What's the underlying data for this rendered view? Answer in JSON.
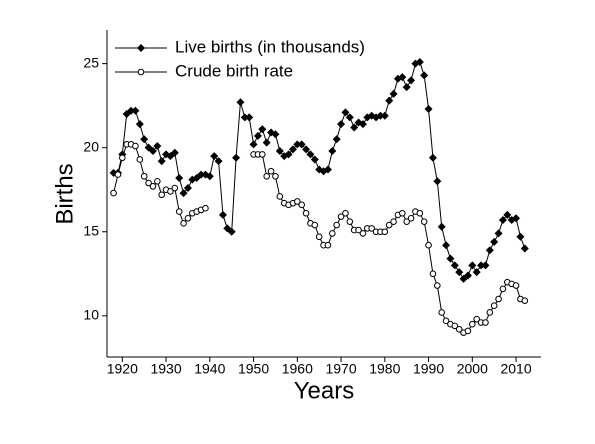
{
  "chart_data": {
    "type": "line",
    "xlabel": "Years",
    "ylabel": "Births",
    "x": [
      1918,
      1919,
      1920,
      1921,
      1922,
      1923,
      1924,
      1925,
      1926,
      1927,
      1928,
      1929,
      1930,
      1931,
      1932,
      1933,
      1934,
      1935,
      1936,
      1937,
      1938,
      1939,
      1940,
      1941,
      1942,
      1943,
      1944,
      1945,
      1946,
      1947,
      1948,
      1949,
      1950,
      1951,
      1952,
      1953,
      1954,
      1955,
      1956,
      1957,
      1958,
      1959,
      1960,
      1961,
      1962,
      1963,
      1964,
      1965,
      1966,
      1967,
      1968,
      1969,
      1970,
      1971,
      1972,
      1973,
      1974,
      1975,
      1976,
      1977,
      1978,
      1979,
      1980,
      1981,
      1982,
      1983,
      1984,
      1985,
      1986,
      1987,
      1988,
      1989,
      1990,
      1991,
      1992,
      1993,
      1994,
      1995,
      1996,
      1997,
      1998,
      1999,
      2000,
      2001,
      2002,
      2003,
      2004,
      2005,
      2006,
      2007,
      2008,
      2009,
      2010,
      2011,
      2012
    ],
    "series": [
      {
        "name": "Live births (in thousands)",
        "color": "#000000",
        "marker": "diamond",
        "values": [
          18.5,
          18.5,
          19.6,
          22.0,
          22.2,
          22.2,
          21.4,
          20.5,
          20.0,
          19.8,
          20.1,
          19.2,
          19.6,
          19.5,
          19.7,
          18.2,
          17.3,
          17.6,
          18.1,
          18.2,
          18.4,
          18.4,
          18.3,
          19.5,
          19.2,
          16.0,
          15.2,
          15.0,
          19.4,
          22.7,
          21.8,
          21.8,
          20.2,
          20.7,
          21.1,
          20.3,
          20.9,
          20.8,
          19.8,
          19.5,
          19.6,
          19.9,
          20.2,
          20.2,
          19.9,
          19.6,
          19.3,
          18.7,
          18.6,
          18.7,
          19.8,
          20.5,
          21.4,
          22.1,
          21.8,
          21.2,
          21.5,
          21.4,
          21.8,
          21.9,
          21.8,
          21.9,
          21.9,
          22.8,
          23.2,
          24.1,
          24.2,
          23.6,
          24.0,
          25.0,
          25.1,
          24.3,
          22.3,
          19.4,
          18.0,
          15.3,
          14.2,
          13.4,
          13.0,
          12.6,
          12.2,
          12.4,
          13.0,
          12.6,
          13.0,
          13.0,
          13.9,
          14.4,
          14.9,
          15.7,
          16.0,
          15.7,
          15.8,
          14.7,
          14.0
        ]
      },
      {
        "name": "Crude birth rate",
        "color": "#000000",
        "marker": "circle",
        "values": [
          17.3,
          18.4,
          19.4,
          20.2,
          20.2,
          20.1,
          19.3,
          18.3,
          17.9,
          17.7,
          18.0,
          17.2,
          17.5,
          17.4,
          17.6,
          16.2,
          15.5,
          15.8,
          16.1,
          16.2,
          16.3,
          16.4,
          null,
          null,
          null,
          null,
          null,
          null,
          null,
          null,
          null,
          null,
          19.6,
          19.6,
          19.6,
          18.3,
          18.6,
          18.3,
          17.1,
          16.7,
          16.6,
          16.7,
          16.8,
          16.6,
          16.1,
          15.5,
          15.4,
          14.7,
          14.2,
          14.2,
          14.9,
          15.4,
          15.9,
          16.1,
          15.6,
          15.1,
          15.1,
          14.9,
          15.2,
          15.2,
          15.0,
          15.0,
          15.0,
          15.4,
          15.6,
          16.0,
          16.1,
          15.6,
          15.8,
          16.2,
          16.1,
          15.6,
          14.2,
          12.5,
          11.8,
          10.2,
          9.7,
          9.5,
          9.4,
          9.2,
          9.0,
          9.1,
          9.5,
          9.8,
          9.6,
          9.6,
          10.2,
          10.6,
          11.0,
          11.6,
          12.0,
          11.9,
          11.8,
          11.0,
          10.9
        ]
      }
    ],
    "xlim": [
      1916.5,
      2015.7
    ],
    "xticks": [
      1920,
      1930,
      1940,
      1950,
      1960,
      1970,
      1980,
      1990,
      2000,
      2010
    ],
    "ylim": [
      7.55,
      27.0
    ],
    "yticks": [
      10,
      15,
      20,
      25
    ],
    "legend": "upper left",
    "grid": false
  }
}
